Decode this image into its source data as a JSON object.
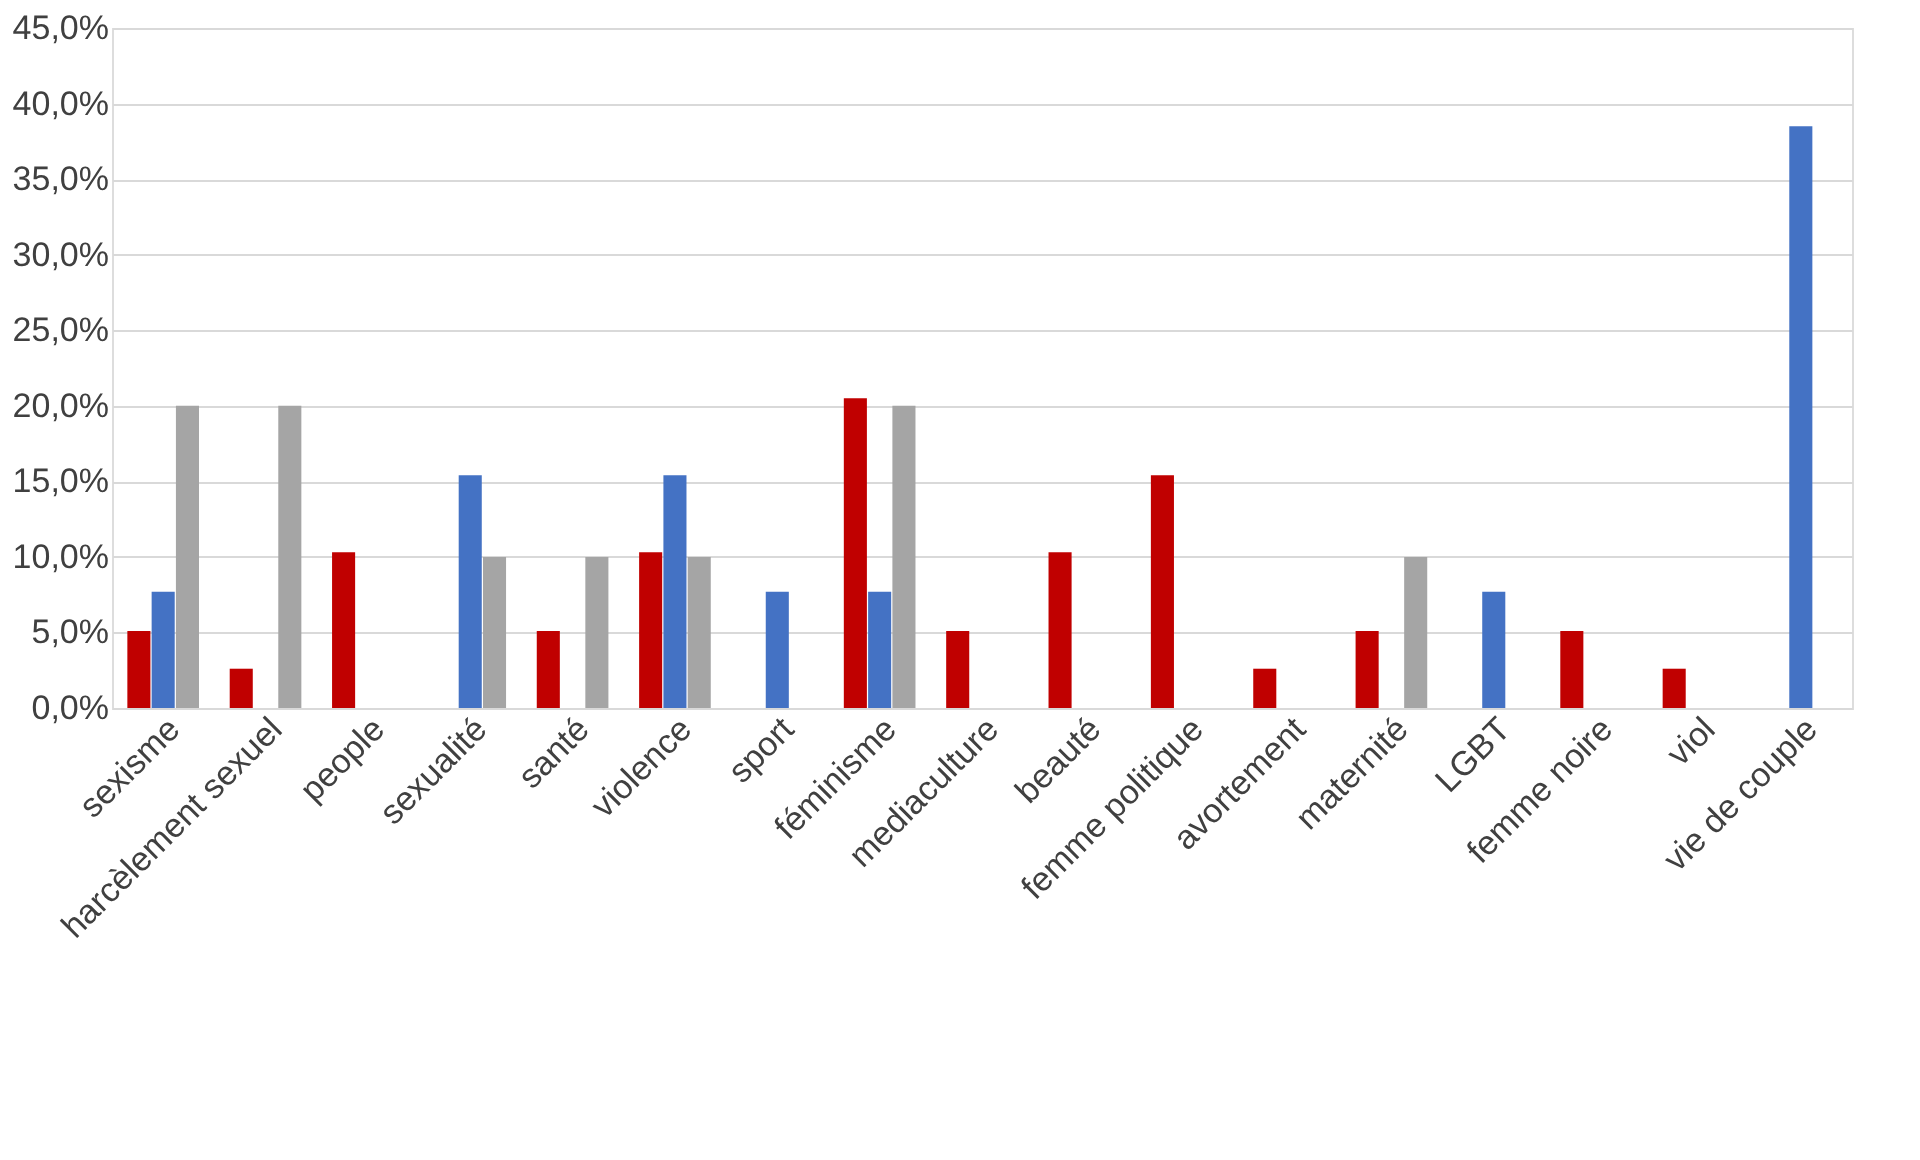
{
  "chart_data": {
    "type": "bar",
    "categories": [
      "sexisme",
      "harcèlement sexuel",
      "people",
      "sexualité",
      "santé",
      "violence",
      "sport",
      "féminisme",
      "mediaculture",
      "beauté",
      "femme politique",
      "avortement",
      "maternité",
      "LGBT",
      "femme noire",
      "viol",
      "vie de couple"
    ],
    "series": [
      {
        "color": "#c00000",
        "values": [
          5.1,
          2.6,
          10.3,
          0,
          5.1,
          10.3,
          0,
          20.5,
          5.1,
          10.3,
          15.4,
          2.6,
          5.1,
          0,
          5.1,
          2.6,
          0
        ]
      },
      {
        "color": "#4472c4",
        "values": [
          7.7,
          0,
          0,
          15.4,
          0,
          15.4,
          7.7,
          7.7,
          0,
          0,
          0,
          0,
          0,
          7.7,
          0,
          0,
          38.5
        ]
      },
      {
        "color": "#a5a5a5",
        "values": [
          20,
          20,
          0,
          10,
          10,
          10,
          0,
          20,
          0,
          0,
          0,
          0,
          10,
          0,
          0,
          0,
          0
        ]
      }
    ],
    "ylim": [
      0,
      45
    ],
    "yticks": [
      {
        "value": 0,
        "label": "0,0%"
      },
      {
        "value": 5,
        "label": "5,0%"
      },
      {
        "value": 10,
        "label": "10,0%"
      },
      {
        "value": 15,
        "label": "15,0%"
      },
      {
        "value": 20,
        "label": "20,0%"
      },
      {
        "value": 25,
        "label": "25,0%"
      },
      {
        "value": 30,
        "label": "30,0%"
      },
      {
        "value": 35,
        "label": "35,0%"
      },
      {
        "value": 40,
        "label": "40,0%"
      },
      {
        "value": 45,
        "label": "45,0%"
      }
    ],
    "grid": "y",
    "legend": false
  }
}
